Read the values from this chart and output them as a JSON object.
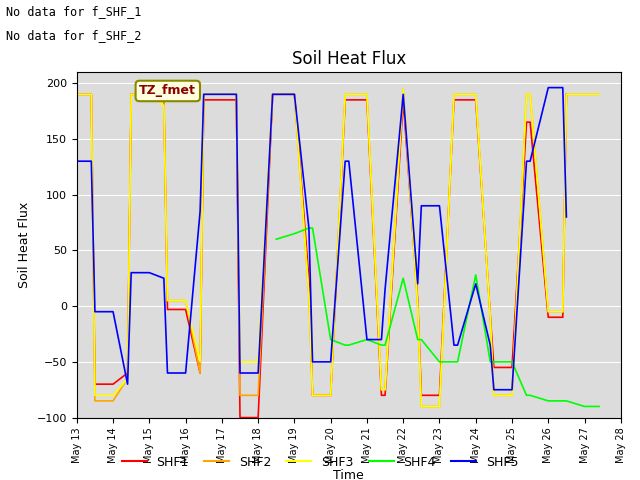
{
  "title": "Soil Heat Flux",
  "xlabel": "Time",
  "ylabel": "Soil Heat Flux",
  "ylim": [
    -100,
    210
  ],
  "yticks": [
    -100,
    -50,
    0,
    50,
    100,
    150,
    200
  ],
  "background_color": "#dcdcdc",
  "annotations": [
    "No data for f_SHF_1",
    "No data for f_SHF_2"
  ],
  "legend_label": "TZ_fmet",
  "series": {
    "SHF1": {
      "color": "red",
      "x": [
        13,
        13.4,
        13.5,
        14,
        14.4,
        14.5,
        15,
        15.4,
        15.5,
        16,
        16.4,
        16.5,
        17,
        17.4,
        17.5,
        18,
        18.4,
        18.5,
        19,
        19.4,
        19.5,
        20,
        20.4,
        20.5,
        21,
        21.4,
        21.5,
        22,
        22.4,
        22.5,
        23,
        23.4,
        23.5,
        24,
        24.4,
        24.5,
        25,
        25.4,
        25.5,
        26,
        26.4,
        26.5,
        27
      ],
      "y": [
        190,
        190,
        -70,
        -70,
        -60,
        190,
        190,
        185,
        -3,
        -3,
        -60,
        185,
        185,
        185,
        -100,
        -100,
        190,
        190,
        190,
        25,
        -80,
        -80,
        185,
        185,
        185,
        -80,
        -80,
        185,
        5,
        -80,
        -80,
        185,
        185,
        185,
        -8,
        -55,
        -55,
        165,
        165,
        -10,
        -10,
        190,
        null
      ]
    },
    "SHF2": {
      "color": "orange",
      "x": [
        13,
        13.4,
        13.5,
        14,
        14.4,
        14.5,
        15,
        15.4,
        15.5,
        16,
        16.4,
        16.5,
        17,
        17.4,
        17.5,
        18,
        18.4,
        18.5,
        19,
        19.4,
        19.5,
        20,
        20.4,
        20.5,
        21,
        21.4,
        21.5,
        22,
        22.4,
        22.5,
        23,
        23.4,
        23.5,
        24,
        24.4,
        24.5,
        25,
        25.4,
        25.5,
        26,
        26.4,
        26.5,
        27,
        27.4
      ],
      "y": [
        190,
        190,
        -85,
        -85,
        -65,
        190,
        190,
        190,
        5,
        5,
        -60,
        190,
        190,
        190,
        -80,
        -80,
        190,
        190,
        190,
        10,
        -80,
        -80,
        190,
        190,
        190,
        -75,
        -75,
        195,
        0,
        -90,
        -90,
        190,
        190,
        190,
        -10,
        -80,
        -80,
        190,
        190,
        -5,
        -5,
        190,
        190,
        190
      ]
    },
    "SHF3": {
      "color": "yellow",
      "x": [
        13,
        13.4,
        13.5,
        14,
        14.4,
        14.5,
        15,
        15.4,
        15.5,
        16,
        16.4,
        16.5,
        17,
        17.4,
        17.5,
        18,
        18.4,
        18.5,
        19,
        19.4,
        19.5,
        20,
        20.4,
        20.5,
        21,
        21.4,
        21.5,
        22,
        22.4,
        22.5,
        23,
        23.4,
        23.5,
        24,
        24.4,
        24.5,
        25,
        25.4,
        25.5,
        26,
        26.4,
        26.5,
        27,
        27.4
      ],
      "y": [
        190,
        190,
        -80,
        -80,
        -65,
        190,
        190,
        180,
        5,
        5,
        -50,
        190,
        190,
        190,
        -50,
        -50,
        190,
        190,
        190,
        10,
        -80,
        -80,
        190,
        190,
        190,
        -75,
        -75,
        195,
        0,
        -90,
        -90,
        190,
        190,
        190,
        -10,
        -80,
        -80,
        190,
        190,
        -5,
        -5,
        190,
        190,
        190
      ]
    },
    "SHF4": {
      "color": "lime",
      "x": [
        18.5,
        19,
        19.4,
        19.5,
        20,
        20.4,
        20.5,
        21,
        21.4,
        21.5,
        22,
        22.4,
        22.5,
        23,
        23.4,
        23.5,
        24,
        24.4,
        24.5,
        25,
        25.4,
        25.5,
        26,
        26.4,
        26.5,
        27,
        27.4
      ],
      "y": [
        60,
        65,
        70,
        70,
        -30,
        -35,
        -35,
        -30,
        -35,
        -35,
        25,
        -30,
        -30,
        -50,
        -50,
        -50,
        28,
        -50,
        -50,
        -50,
        -80,
        -80,
        -85,
        -85,
        -85,
        -90,
        -90
      ]
    },
    "SHF5": {
      "color": "blue",
      "x": [
        13,
        13.4,
        13.5,
        14,
        14.4,
        14.5,
        15,
        15.4,
        15.5,
        16,
        16.4,
        16.5,
        17,
        17.4,
        17.5,
        18,
        18.4,
        18.5,
        19,
        19.4,
        19.5,
        20,
        20.4,
        20.5,
        21,
        21.4,
        21.5,
        22,
        22.4,
        22.5,
        23,
        23.4,
        23.5,
        24,
        24.4,
        24.5,
        25,
        25.4,
        25.5,
        26,
        26.4,
        26.5,
        27
      ],
      "y": [
        130,
        130,
        -5,
        -5,
        -70,
        30,
        30,
        25,
        -60,
        -60,
        85,
        190,
        190,
        190,
        -60,
        -60,
        190,
        190,
        190,
        70,
        -50,
        -50,
        130,
        130,
        -30,
        -30,
        15,
        190,
        20,
        90,
        90,
        -35,
        -35,
        20,
        -35,
        -75,
        -75,
        130,
        130,
        196,
        196,
        80,
        null
      ]
    }
  },
  "xtick_labels": [
    "May 13",
    "May 14",
    "May 15",
    "May 16",
    "May 17",
    "May 18",
    "May 19",
    "May 20",
    "May 21",
    "May 22",
    "May 23",
    "May 24",
    "May 25",
    "May 26",
    "May 27",
    "May 28"
  ],
  "xtick_positions": [
    13,
    14,
    15,
    16,
    17,
    18,
    19,
    20,
    21,
    22,
    23,
    24,
    25,
    26,
    27,
    28
  ]
}
